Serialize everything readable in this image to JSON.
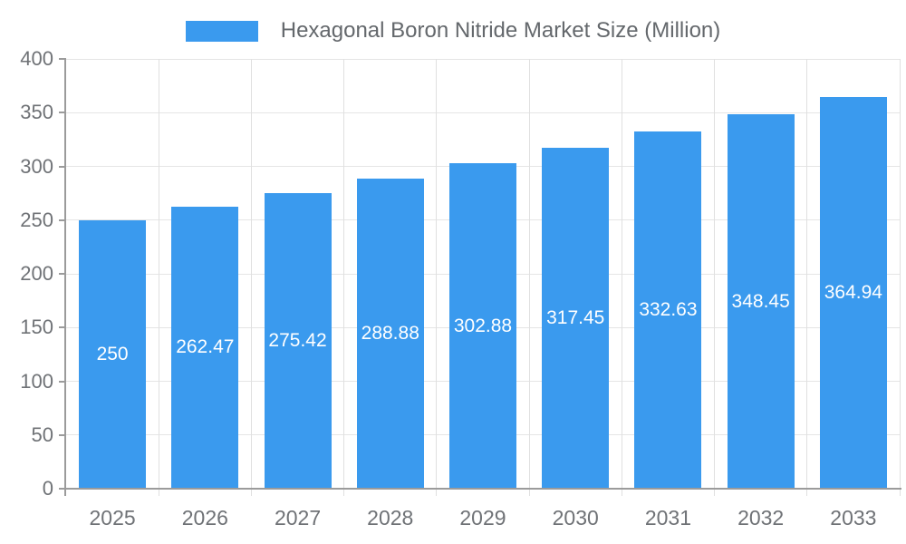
{
  "legend": {
    "label": "Hexagonal Boron Nitride Market Size (Million)"
  },
  "colors": {
    "bar": "#3a9aee",
    "bar_label": "#ffffff",
    "grid_horizontal": "#e5e5e5",
    "grid_vertical": "#e0e0e0",
    "axis_line": "#9b9b9b",
    "axis_text": "#6f7276",
    "legend_text": "#64686c",
    "background": "#ffffff"
  },
  "chart_data": {
    "type": "bar",
    "title": "Hexagonal Boron Nitride Market Size (Million)",
    "categories": [
      "2025",
      "2026",
      "2027",
      "2028",
      "2029",
      "2030",
      "2031",
      "2032",
      "2033"
    ],
    "values": [
      250,
      262.47,
      275.42,
      288.88,
      302.88,
      317.45,
      332.63,
      348.45,
      364.94
    ],
    "value_labels": [
      "250",
      "262.47",
      "275.42",
      "288.88",
      "302.88",
      "317.45",
      "332.63",
      "348.45",
      "364.94"
    ],
    "xlabel": "",
    "ylabel": "",
    "ylim": [
      0,
      400
    ],
    "ytick_step": 50,
    "grid": true,
    "legend_position": "top",
    "value_labels_position": "center-of-bar"
  }
}
